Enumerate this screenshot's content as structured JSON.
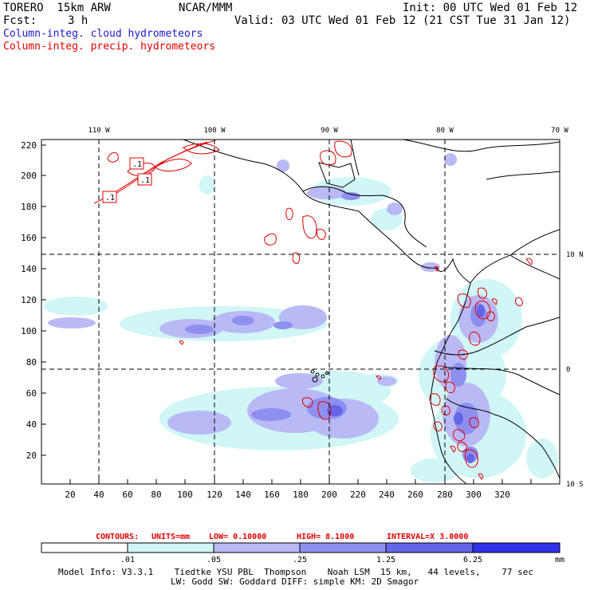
{
  "header": {
    "model": "TORERO  15km ARW",
    "org": "NCAR/MMM",
    "init": "Init: 00 UTC Wed 01 Feb 12",
    "fcst_label": "Fcst:",
    "fcst_value": "3 h",
    "valid": "Valid: 03 UTC Wed 01 Feb 12 (21 CST Tue 31 Jan 12)",
    "line_cloud": "Column-integ. cloud hydrometeors",
    "line_precip": "Column-integ. precip. hydrometeors",
    "colors": {
      "cloud": "#1a1acc",
      "precip": "#e00000"
    }
  },
  "map": {
    "top_labels": [
      "110 W",
      "100 W",
      "90 W",
      "80 W",
      "70 W"
    ],
    "right_labels": [
      "10 N",
      "0",
      "10 S"
    ],
    "y_ticks": [
      "220",
      "200",
      "180",
      "160",
      "140",
      "120",
      "100",
      "80",
      "60",
      "40",
      "20"
    ],
    "x_ticks": [
      "20",
      "40",
      "60",
      "80",
      "100",
      "120",
      "140",
      "160",
      "180",
      "200",
      "220",
      "240",
      "260",
      "280",
      "300",
      "320"
    ],
    "contour_labels": [
      ".1",
      ".1",
      ".1"
    ]
  },
  "contour_info": {
    "contours": "CONTOURS:",
    "units": "UNITS=mm",
    "low": "LOW=  0.10000",
    "high": "HIGH=  8.1000",
    "interval": "INTERVAL=X  3.0000"
  },
  "colorbar": {
    "labels": [
      ".01",
      ".05",
      ".25",
      "1.25",
      "6.25"
    ],
    "unit": "mm",
    "colors": [
      "#ffffff",
      "#d0f6f6",
      "#b9b9f5",
      "#8f8ff0",
      "#6565ea",
      "#3232e6"
    ]
  },
  "footer": {
    "line1": "Model Info: V3.3.1    Tiedtke YSU PBL  Thompson    Noah LSM  15 km,   44 levels,    77 sec",
    "line2": "LW: Godd SW: Goddard DIFF: simple KM: 2D Smagor"
  }
}
